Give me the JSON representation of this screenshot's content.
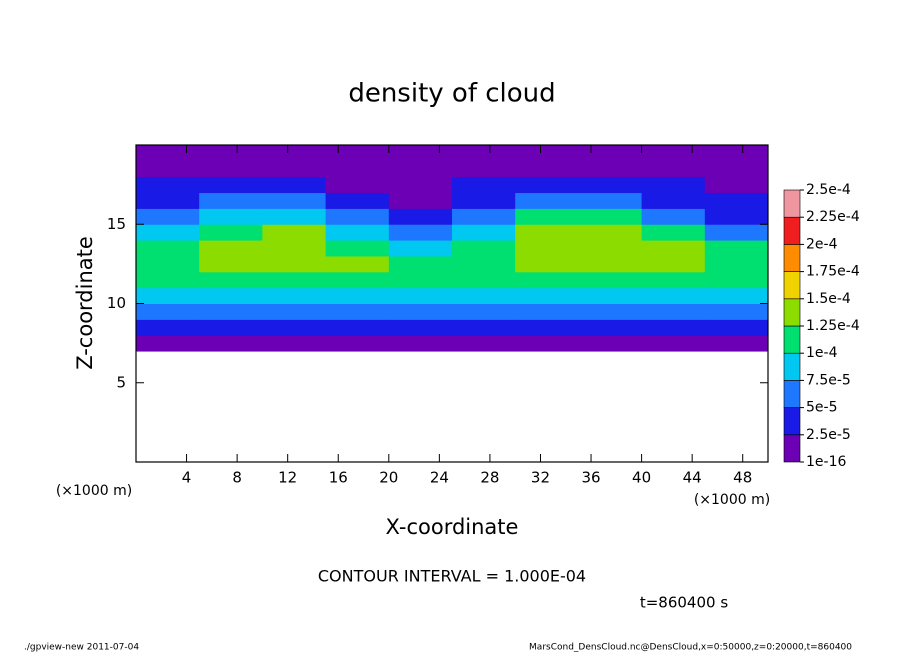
{
  "chart_data": {
    "type": "heatmap",
    "title": "density of cloud",
    "x_label": "X-coordinate",
    "y_label": "Z-coordinate",
    "x_unit": "(×1000 m)",
    "y_unit": "(×1000 m)",
    "note": "CONTOUR INTERVAL = 1.000E-04",
    "time_label": "t=860400 s",
    "footer_left": "./gpview-new  2011-07-04",
    "footer_right": "MarsCond_DensCloud.nc@DensCloud,x=0:50000,z=0:20000,t=860400",
    "xlim": [
      0,
      50
    ],
    "ylim": [
      0,
      20
    ],
    "xticks": [
      4,
      8,
      12,
      16,
      20,
      24,
      28,
      32,
      36,
      40,
      44,
      48
    ],
    "yticks": [
      5,
      10,
      15
    ],
    "x": [
      2.5,
      7.5,
      12.5,
      17.5,
      22.5,
      27.5,
      32.5,
      37.5,
      42.5,
      47.5
    ],
    "y": [
      0.5,
      1.5,
      2.5,
      3.5,
      4.5,
      5.5,
      6.5,
      7.5,
      8.5,
      9.5,
      10.5,
      11.5,
      12.5,
      13.5,
      14.5,
      15.5,
      16.5,
      17.5,
      18.5,
      19.5
    ],
    "values": [
      [
        null,
        null,
        null,
        null,
        null,
        null,
        null,
        1e-05,
        3.5e-05,
        6e-05,
        8e-05,
        0.0001,
        0.00012,
        0.00012,
        9e-05,
        6e-05,
        4e-05,
        2.5e-05,
        1.5e-05,
        1e-05
      ],
      [
        null,
        null,
        null,
        null,
        null,
        null,
        null,
        1e-05,
        4e-05,
        7e-05,
        9e-05,
        0.00011,
        0.000125,
        0.00013,
        0.00012,
        8e-05,
        5e-05,
        3e-05,
        1.5e-05,
        1e-05
      ],
      [
        null,
        null,
        null,
        null,
        null,
        null,
        null,
        1e-05,
        4e-05,
        7e-05,
        9e-05,
        0.00011,
        0.00013,
        0.000135,
        0.00013,
        9e-05,
        5e-05,
        3e-05,
        1.5e-05,
        1e-05
      ],
      [
        null,
        null,
        null,
        null,
        null,
        null,
        null,
        1e-05,
        4e-05,
        7e-05,
        9e-05,
        0.00011,
        0.000125,
        0.00012,
        9e-05,
        5e-05,
        2.5e-05,
        1.5e-05,
        8e-06,
        5e-06
      ],
      [
        null,
        null,
        null,
        null,
        null,
        null,
        null,
        1e-05,
        4e-05,
        7e-05,
        8.5e-05,
        0.0001,
        0.00011,
        8e-05,
        5e-05,
        3e-05,
        2e-05,
        1.5e-05,
        1e-05,
        8e-06
      ],
      [
        null,
        null,
        null,
        null,
        null,
        null,
        null,
        1e-05,
        3.5e-05,
        6.5e-05,
        8.5e-05,
        0.000105,
        0.00012,
        0.000115,
        9e-05,
        6e-05,
        4e-05,
        2.5e-05,
        1.5e-05,
        1e-05
      ],
      [
        null,
        null,
        null,
        null,
        null,
        null,
        null,
        1e-05,
        4e-05,
        7e-05,
        9e-05,
        0.00011,
        0.00013,
        0.000135,
        0.00013,
        0.000105,
        6e-05,
        3.5e-05,
        2e-05,
        1.2e-05
      ],
      [
        null,
        null,
        null,
        null,
        null,
        null,
        null,
        1e-05,
        4e-05,
        7e-05,
        9e-05,
        0.00011,
        0.00013,
        0.000135,
        0.00013,
        0.000105,
        6e-05,
        3.5e-05,
        2e-05,
        1.2e-05
      ],
      [
        null,
        null,
        null,
        null,
        null,
        null,
        null,
        1e-05,
        4e-05,
        7e-05,
        9e-05,
        0.00011,
        0.00013,
        0.00013,
        0.00011,
        7e-05,
        4.5e-05,
        3e-05,
        2e-05,
        1.2e-05
      ],
      [
        null,
        null,
        null,
        null,
        null,
        null,
        null,
        1e-05,
        4e-05,
        6.5e-05,
        8e-05,
        0.0001,
        0.00011,
        0.0001,
        7e-05,
        4.5e-05,
        3e-05,
        2e-05,
        1.5e-05,
        1e-05
      ]
    ],
    "levels": [
      {
        "value": 1e-16,
        "label": "1e-16"
      },
      {
        "value": 2.5e-05,
        "label": "2.5e-5"
      },
      {
        "value": 5e-05,
        "label": "5e-5"
      },
      {
        "value": 7.5e-05,
        "label": "7.5e-5"
      },
      {
        "value": 0.0001,
        "label": "1e-4"
      },
      {
        "value": 0.000125,
        "label": "1.25e-4"
      },
      {
        "value": 0.00015,
        "label": "1.5e-4"
      },
      {
        "value": 0.000175,
        "label": "1.75e-4"
      },
      {
        "value": 0.0002,
        "label": "2e-4"
      },
      {
        "value": 0.000225,
        "label": "2.25e-4"
      },
      {
        "value": 0.00025,
        "label": "2.5e-4"
      }
    ],
    "colors": [
      "#6c00b4",
      "#1a1ae6",
      "#1e78ff",
      "#00c8f0",
      "#00e070",
      "#8cdc00",
      "#f0d200",
      "#ff8c00",
      "#f01e1e",
      "#f096a0"
    ]
  }
}
